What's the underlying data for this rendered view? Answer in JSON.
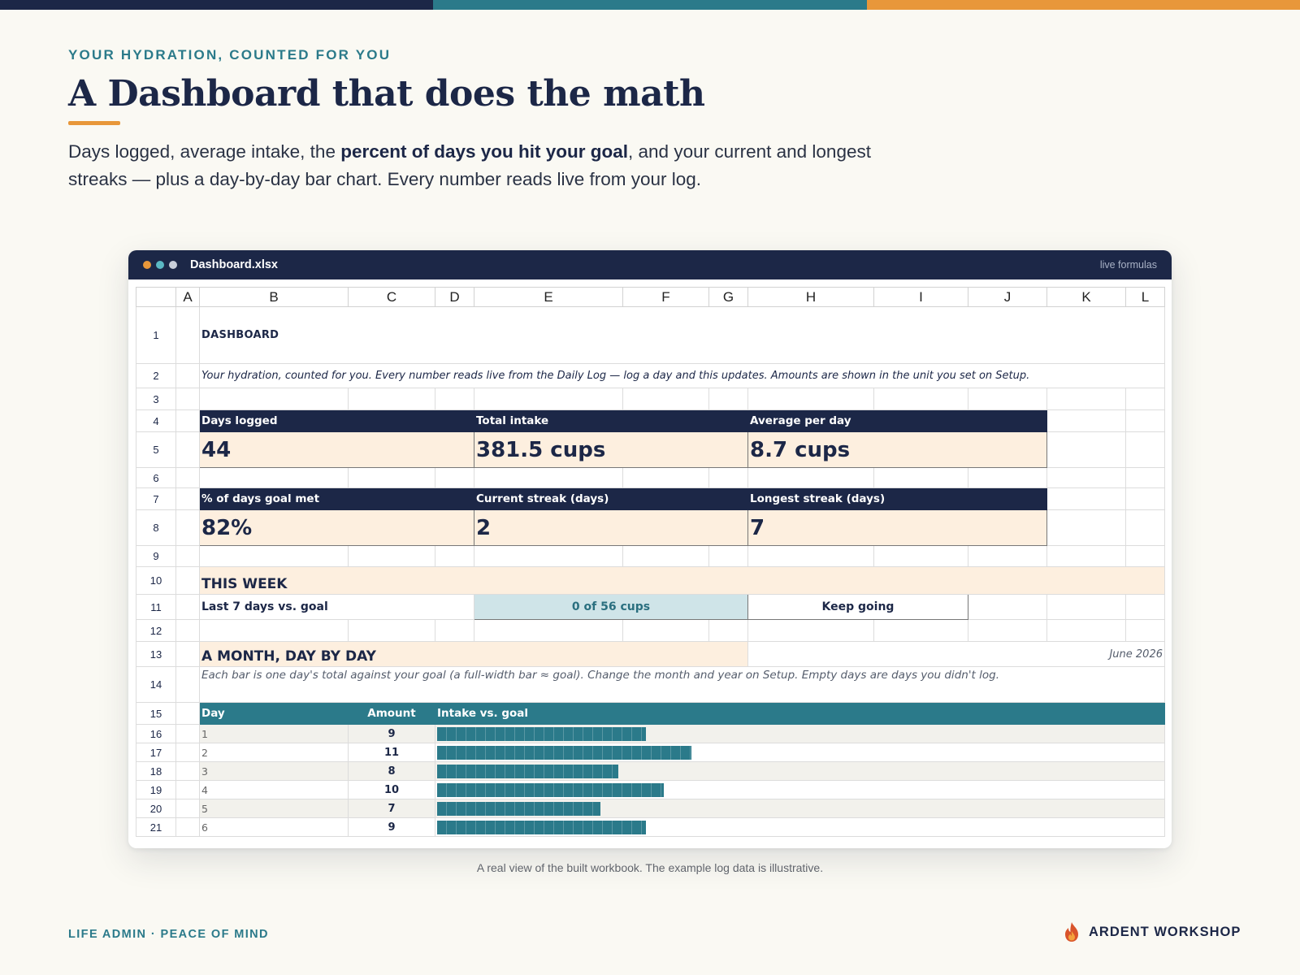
{
  "colors": {
    "navy": "#1c2747",
    "teal": "#2b7a8a",
    "orange": "#e8973a",
    "cream": "#fdefdf"
  },
  "topbar": [
    "#1c2747",
    "#2b7a8a",
    "#e8973a"
  ],
  "eyebrow": "YOUR HYDRATION, COUNTED FOR YOU",
  "headline": "A Dashboard that does the math",
  "lede": {
    "part1": "Days logged, average intake, the ",
    "bold": "percent of days you hit your goal",
    "part2": ", and your current and longest streaks — plus a day-by-day bar chart. Every number reads live from your log."
  },
  "window": {
    "filename": "Dashboard.xlsx",
    "badge": "live formulas",
    "dots": [
      "#e8973a",
      "#5bb8c4",
      "#c9cfdb"
    ]
  },
  "sheet": {
    "columns": [
      "A",
      "B",
      "C",
      "D",
      "E",
      "F",
      "G",
      "H",
      "I",
      "J",
      "K",
      "L"
    ],
    "title": "DASHBOARD",
    "subtitle": "Your hydration, counted for you. Every number reads live from the Daily Log — log a day and this updates. Amounts are shown in the unit you set on Setup.",
    "kpis": [
      {
        "label": "Days logged",
        "value": "44"
      },
      {
        "label": "Total intake",
        "value": "381.5 cups"
      },
      {
        "label": "Average per day",
        "value": "8.7 cups"
      },
      {
        "label": "% of days goal met",
        "value": "82%"
      },
      {
        "label": "Current streak (days)",
        "value": "2"
      },
      {
        "label": "Longest streak (days)",
        "value": "7"
      }
    ],
    "week": {
      "heading": "THIS WEEK",
      "label": "Last 7 days vs. goal",
      "progress": "0 of 56 cups",
      "status": "Keep going"
    },
    "month": {
      "heading": "A MONTH, DAY BY DAY",
      "period": "June 2026",
      "note": "Each bar is one day's total against your goal (a full-width bar ≈ goal). Change the month and year on Setup. Empty days are days you didn't log.",
      "headers": {
        "day": "Day",
        "amount": "Amount",
        "chart": "Intake vs. goal"
      },
      "rows": [
        {
          "day": "1",
          "amount": "9",
          "fraction": 0.286
        },
        {
          "day": "2",
          "amount": "11",
          "fraction": 0.349
        },
        {
          "day": "3",
          "amount": "8",
          "fraction": 0.249
        },
        {
          "day": "4",
          "amount": "10",
          "fraction": 0.311
        },
        {
          "day": "5",
          "amount": "7",
          "fraction": 0.224
        },
        {
          "day": "6",
          "amount": "9",
          "fraction": 0.286
        }
      ]
    }
  },
  "caption": "A real view of the built workbook. The example log data is illustrative.",
  "footer": {
    "left": "LIFE ADMIN · PEACE OF MIND",
    "brand": "ARDENT WORKSHOP",
    "brand_icon": "flame-icon"
  }
}
